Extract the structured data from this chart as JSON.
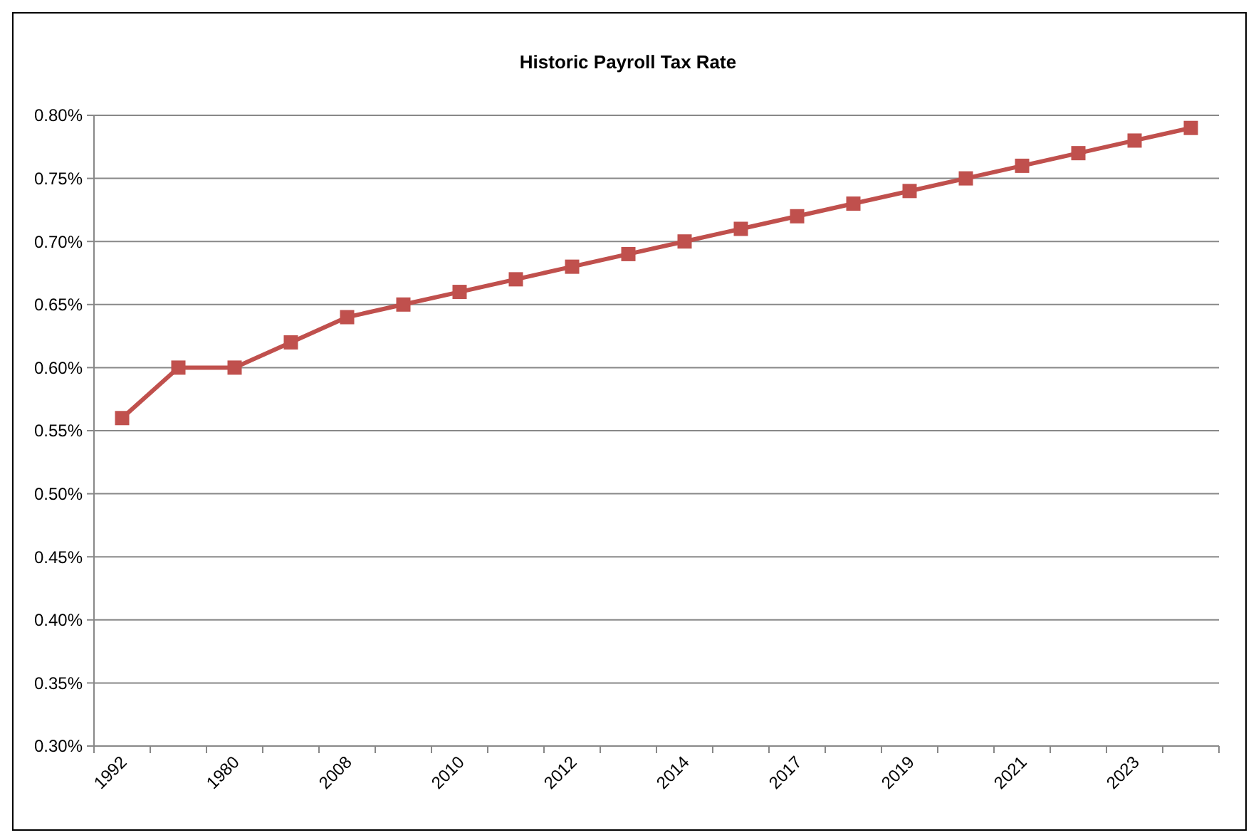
{
  "chart_data": {
    "type": "line",
    "title": "Historic Payroll Tax Rate",
    "categories": [
      "1992",
      null,
      "1980",
      null,
      "2008",
      null,
      "2010",
      null,
      "2012",
      null,
      "2014",
      null,
      "2017",
      null,
      "2019",
      null,
      "2021",
      null,
      "2023",
      null
    ],
    "series": [
      {
        "color": "#c0504d",
        "values": [
          0.56,
          0.6,
          0.6,
          0.62,
          0.64,
          0.65,
          0.66,
          0.67,
          0.68,
          0.69,
          0.7,
          0.71,
          0.72,
          0.73,
          0.74,
          0.75,
          0.76,
          0.77,
          0.78,
          0.79
        ]
      }
    ],
    "ylim": [
      0.3,
      0.8
    ],
    "yticks": [
      {
        "value": 0.3,
        "label": "0.30%"
      },
      {
        "value": 0.35,
        "label": "0.35%"
      },
      {
        "value": 0.4,
        "label": "0.40%"
      },
      {
        "value": 0.45,
        "label": "0.45%"
      },
      {
        "value": 0.5,
        "label": "0.50%"
      },
      {
        "value": 0.55,
        "label": "0.55%"
      },
      {
        "value": 0.6,
        "label": "0.60%"
      },
      {
        "value": 0.65,
        "label": "0.65%"
      },
      {
        "value": 0.7,
        "label": "0.70%"
      },
      {
        "value": 0.75,
        "label": "0.75%"
      },
      {
        "value": 0.8,
        "label": "0.80%"
      }
    ],
    "grid": "y",
    "marker": "square",
    "line_style": "solid"
  }
}
